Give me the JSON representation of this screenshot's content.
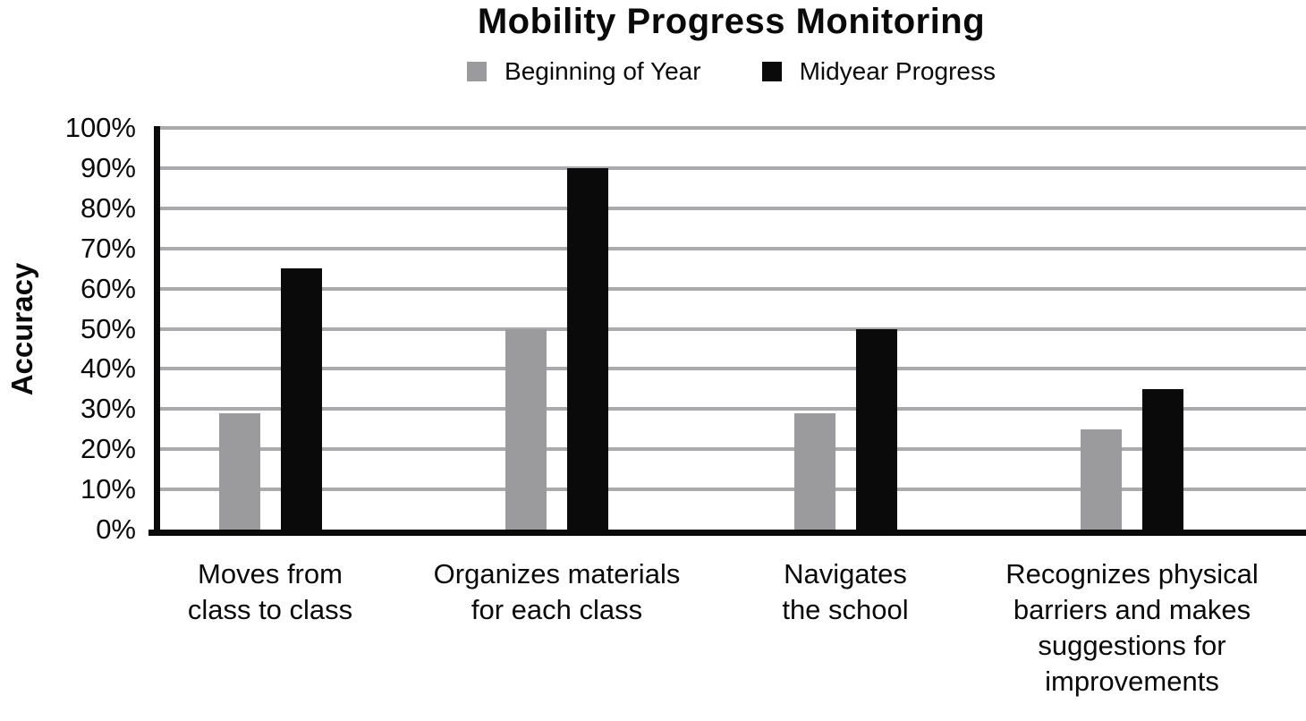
{
  "chart_data": {
    "type": "bar",
    "title": "Mobility Progress Monitoring",
    "ylabel": "Accuracy",
    "xlabel": "",
    "categories": [
      "Moves from\nclass to class",
      "Organizes materials\nfor each class",
      "Navigates\nthe school",
      "Recognizes physical\nbarriers and makes\nsuggestions for\nimprovements"
    ],
    "series": [
      {
        "name": "Beginning of Year",
        "color": "#9b9b9e",
        "values": [
          29,
          50,
          29,
          25
        ]
      },
      {
        "name": "Midyear Progress",
        "color": "#0a0a0a",
        "values": [
          65,
          90,
          50,
          35
        ]
      }
    ],
    "ylim": [
      0,
      100
    ],
    "y_tick_step": 10,
    "y_ticks": [
      "0%",
      "10%",
      "20%",
      "30%",
      "40%",
      "50%",
      "60%",
      "70%",
      "80%",
      "90%",
      "100%"
    ],
    "grid": "horizontal",
    "gridline_color": "#a9a9ae",
    "legend_position": "top",
    "background_color": "#ffffff"
  }
}
